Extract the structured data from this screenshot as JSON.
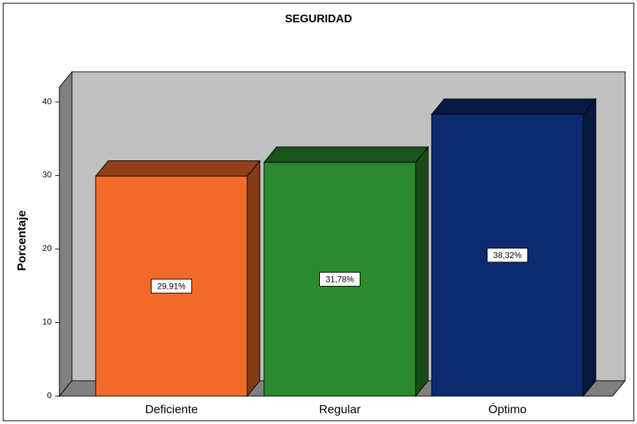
{
  "chart_data": {
    "type": "bar3d",
    "title": "SEGURIDAD",
    "y_label": "Porcentaje",
    "categories": [
      "Deficiente",
      "Regular",
      "Óptimo"
    ],
    "values": [
      29.91,
      31.78,
      38.32
    ],
    "value_labels": [
      "29,91%",
      "31,78%",
      "38,32%"
    ],
    "colors": [
      "#f26b2b",
      "#2b8a2e",
      "#0c2a70"
    ],
    "ylim": [
      0,
      42
    ],
    "yticks": [
      0,
      10,
      20,
      30,
      40
    ]
  }
}
